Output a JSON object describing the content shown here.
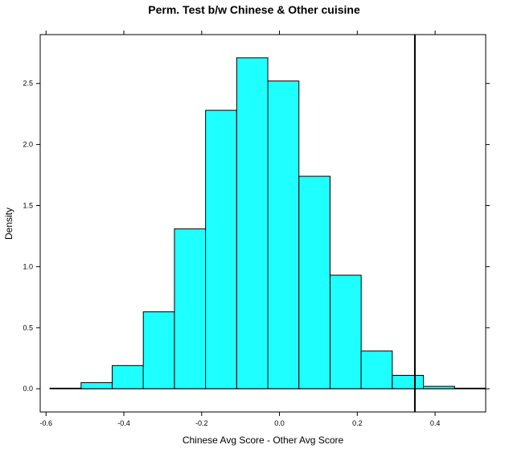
{
  "chart_data": {
    "type": "bar",
    "title": "Perm. Test b/w Chinese & Other cuisine",
    "xlabel": "Chinese Avg Score - Other Avg Score",
    "ylabel": "Density",
    "xlim": [
      -0.615,
      0.53
    ],
    "ylim": [
      -0.19,
      2.9
    ],
    "x_ticks": [
      -0.6,
      -0.4,
      -0.2,
      0.0,
      0.2,
      0.4
    ],
    "x_tick_labels": [
      "-0.6",
      "-0.4",
      "-0.2",
      "0.0",
      "0.2",
      "0.4"
    ],
    "y_ticks": [
      0.0,
      0.5,
      1.0,
      1.5,
      2.0,
      2.5
    ],
    "y_tick_labels": [
      "0.0",
      "0.5",
      "1.0",
      "1.5",
      "2.0",
      "2.5"
    ],
    "bins": [
      {
        "x0": -0.59,
        "x1": -0.51,
        "value": 0.005
      },
      {
        "x0": -0.51,
        "x1": -0.43,
        "value": 0.05
      },
      {
        "x0": -0.43,
        "x1": -0.35,
        "value": 0.19
      },
      {
        "x0": -0.35,
        "x1": -0.27,
        "value": 0.63
      },
      {
        "x0": -0.27,
        "x1": -0.19,
        "value": 1.31
      },
      {
        "x0": -0.19,
        "x1": -0.11,
        "value": 2.28
      },
      {
        "x0": -0.11,
        "x1": -0.03,
        "value": 2.71
      },
      {
        "x0": -0.03,
        "x1": 0.05,
        "value": 2.52
      },
      {
        "x0": 0.05,
        "x1": 0.13,
        "value": 1.74
      },
      {
        "x0": 0.13,
        "x1": 0.21,
        "value": 0.93
      },
      {
        "x0": 0.21,
        "x1": 0.29,
        "value": 0.31
      },
      {
        "x0": 0.29,
        "x1": 0.37,
        "value": 0.11
      },
      {
        "x0": 0.37,
        "x1": 0.45,
        "value": 0.02
      },
      {
        "x0": 0.45,
        "x1": 0.53,
        "value": 0.005
      }
    ],
    "reference_line_x": 0.348,
    "bar_color": "#1EFFFF",
    "bar_edge_color": "#000000",
    "grid": false,
    "legend": "none"
  }
}
